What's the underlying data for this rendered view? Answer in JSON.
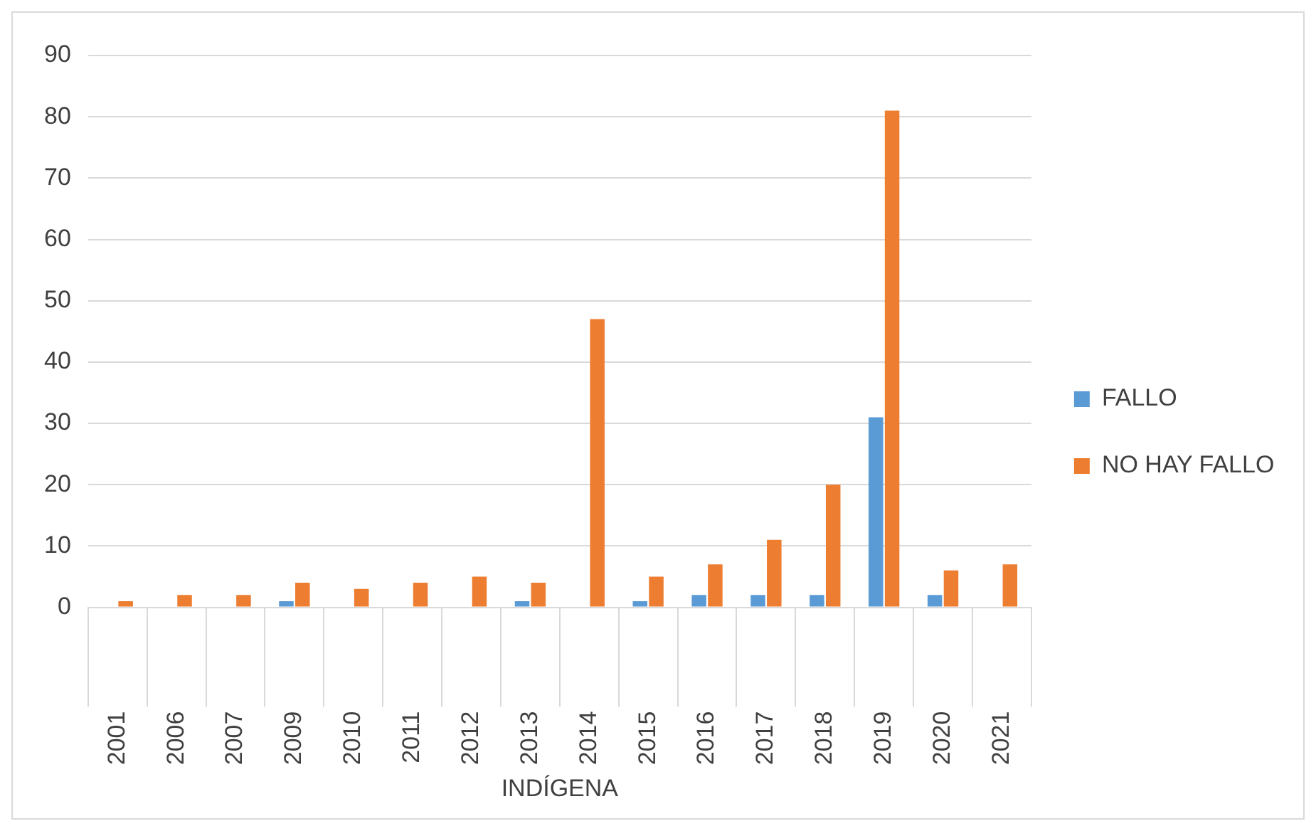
{
  "chart_data": {
    "type": "bar",
    "xlabel": "INDÍGENA",
    "categories": [
      "2001",
      "2006",
      "2007",
      "2009",
      "2010",
      "2011",
      "2012",
      "2013",
      "2014",
      "2015",
      "2016",
      "2017",
      "2018",
      "2019",
      "2020",
      "2021"
    ],
    "series": [
      {
        "name": "FALLO",
        "color": "#5b9bd5",
        "values": [
          null,
          null,
          null,
          1,
          null,
          null,
          null,
          1,
          null,
          1,
          2,
          2,
          2,
          31,
          2,
          null
        ]
      },
      {
        "name": "NO HAY FALLO",
        "color": "#ed7d31",
        "values": [
          1,
          2,
          2,
          4,
          3,
          4,
          5,
          4,
          47,
          5,
          7,
          11,
          20,
          81,
          6,
          7
        ]
      }
    ],
    "ylim": [
      0,
      90
    ],
    "yticks": [
      0,
      10,
      20,
      30,
      40,
      50,
      60,
      70,
      80,
      90
    ],
    "grid": "y",
    "legend": "right"
  }
}
